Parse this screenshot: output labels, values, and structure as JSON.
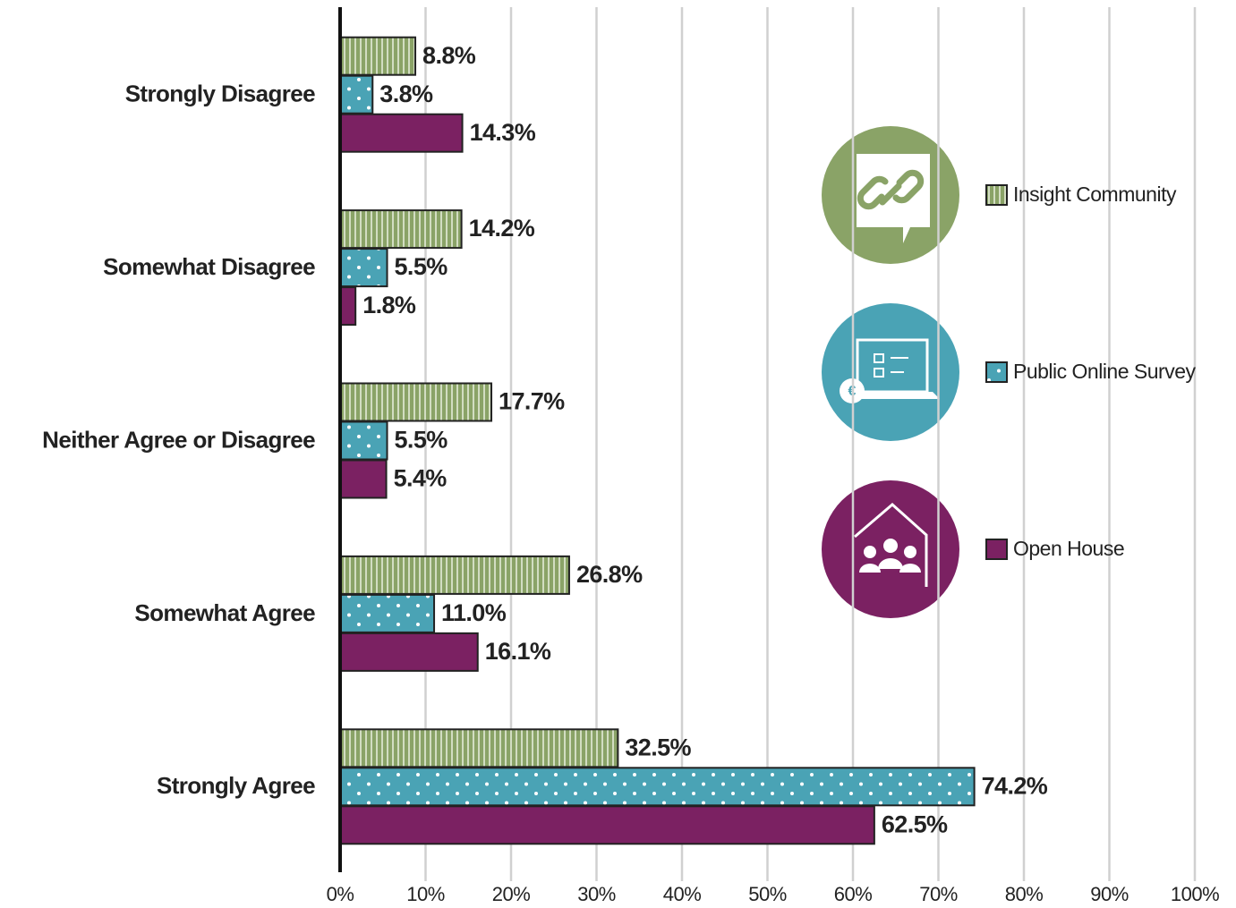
{
  "chart_data": {
    "type": "hbar",
    "categories": [
      "Strongly Disagree",
      "Somewhat Disagree",
      "Neither Agree or Disagree",
      "Somewhat Agree",
      "Strongly Agree"
    ],
    "series": [
      {
        "name": "Insight Community",
        "color": "#8aa367",
        "values": [
          8.8,
          14.2,
          17.7,
          26.8,
          32.5
        ],
        "value_labels": [
          "8.8%",
          "14.2%",
          "17.7%",
          "26.8%",
          "32.5%"
        ]
      },
      {
        "name": "Public Online Survey",
        "color": "#4aa3b5",
        "values": [
          3.8,
          5.5,
          5.5,
          11.0,
          74.2
        ],
        "value_labels": [
          "3.8%",
          "5.5%",
          "5.5%",
          "11.0%",
          "74.2%"
        ]
      },
      {
        "name": "Open House",
        "color": "#7b2162",
        "values": [
          14.3,
          1.8,
          5.4,
          16.1,
          62.5
        ],
        "value_labels": [
          "14.3%",
          "1.8%",
          "5.4%",
          "16.1%",
          "62.5%"
        ]
      }
    ],
    "xlim": [
      0,
      100
    ],
    "xticks": [
      {
        "value": 0,
        "label": "0%"
      },
      {
        "value": 10,
        "label": "10%"
      },
      {
        "value": 20,
        "label": "20%"
      },
      {
        "value": 30,
        "label": "30%"
      },
      {
        "value": 40,
        "label": "40%"
      },
      {
        "value": 50,
        "label": "50%"
      },
      {
        "value": 60,
        "label": "60%"
      },
      {
        "value": 70,
        "label": "70%"
      },
      {
        "value": 80,
        "label": "80%"
      },
      {
        "value": 90,
        "label": "90%"
      },
      {
        "value": 100,
        "label": "100%"
      }
    ],
    "grid": true,
    "legend": "upper right"
  }
}
